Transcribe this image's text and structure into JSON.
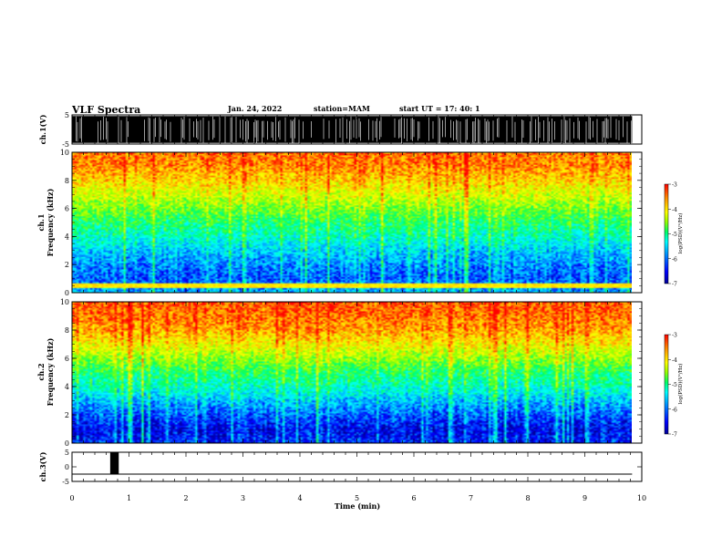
{
  "header": {
    "title": "VLF Spectra",
    "date": "Jan. 24, 2022",
    "station": "station=MAM",
    "start": "start UT =   17: 40: 1"
  },
  "colors": {
    "colormap": [
      "#000096",
      "#0000ff",
      "#0096ff",
      "#00ffff",
      "#00ff64",
      "#96ff00",
      "#ffff00",
      "#ff9600",
      "#ff0000"
    ],
    "waveform": "#000000",
    "background": "#ffffff"
  },
  "chart_data": [
    {
      "type": "line",
      "panel": "ch1-waveform",
      "ylabel": "ch.1(V)",
      "ylim": [
        -5,
        5
      ],
      "yticks": [
        "5",
        "-5"
      ],
      "xlim": [
        0,
        9.83
      ],
      "description_values": {
        "amplitude_range": [
          -5,
          5
        ],
        "dense_spikes": true
      }
    },
    {
      "type": "heatmap",
      "panel": "ch1-spectrogram",
      "ylabel": "ch.1\nFrequency (kHz)",
      "ylim": [
        0,
        10
      ],
      "yticks": [
        "0",
        "2",
        "4",
        "6",
        "8",
        "10"
      ],
      "xlim": [
        0,
        9.83
      ],
      "colorbar": {
        "label": "log(PSD)(V²/Hz)",
        "ticks": [
          "-3",
          "-4",
          "-5",
          "-6",
          "-7"
        ],
        "range": [
          -7,
          -3
        ]
      },
      "freq_profile_kHz": [
        0,
        1,
        2,
        3,
        4,
        5,
        6,
        7,
        8,
        9,
        10
      ],
      "log_psd_profile": [
        -5.8,
        -6.2,
        -6.0,
        -5.7,
        -5.3,
        -5.0,
        -4.6,
        -4.2,
        -3.8,
        -3.5,
        -3.4
      ],
      "notable_features": [
        "horizontal line near 0.5 kHz",
        "vertical sferic streaks throughout"
      ]
    },
    {
      "type": "heatmap",
      "panel": "ch2-spectrogram",
      "ylabel": "ch.2\nFrequency (kHz)",
      "ylim": [
        0,
        10
      ],
      "yticks": [
        "0",
        "2",
        "4",
        "6",
        "8",
        "10"
      ],
      "xlim": [
        0,
        9.83
      ],
      "colorbar": {
        "label": "log(PSD)(V²/Hz)",
        "ticks": [
          "-3",
          "-4",
          "-5",
          "-6",
          "-7"
        ],
        "range": [
          -7,
          -3
        ]
      },
      "freq_profile_kHz": [
        0,
        1,
        2,
        3,
        4,
        5,
        6,
        7,
        8,
        9,
        10
      ],
      "log_psd_profile": [
        -6.4,
        -6.6,
        -6.2,
        -5.8,
        -5.3,
        -5.0,
        -4.5,
        -4.0,
        -3.6,
        -3.4,
        -3.3
      ],
      "notable_features": [
        "vertical sferic streaks throughout"
      ]
    },
    {
      "type": "line",
      "panel": "ch3-waveform",
      "ylabel": "ch.3(V)",
      "ylim": [
        -5,
        5
      ],
      "yticks": [
        "5",
        "0",
        "-5"
      ],
      "xlim": [
        0,
        9.83
      ],
      "baseline": -2.5,
      "pulse": {
        "x": [
          0.67,
          0.82
        ],
        "y": [
          -2.5,
          5
        ]
      }
    }
  ],
  "xaxis": {
    "xlabel": "Time (min)",
    "xlim": [
      0,
      10
    ],
    "ticks": [
      "0",
      "1",
      "2",
      "3",
      "4",
      "5",
      "6",
      "7",
      "8",
      "9",
      "10"
    ]
  }
}
